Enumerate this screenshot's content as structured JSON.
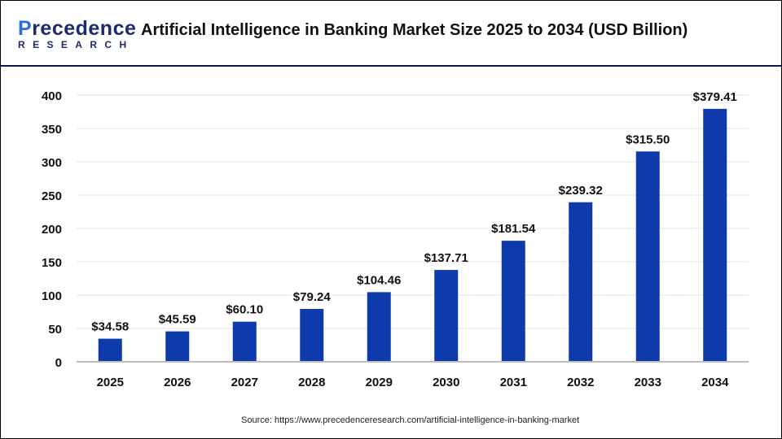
{
  "header": {
    "logo_line1": "Precedence",
    "logo_line2": "RESEARCH",
    "title": "Artificial Intelligence in Banking Market Size 2025 to 2034 (USD Billion)"
  },
  "source": "Source: https://www.precedenceresearch.com/artificial-intelligence-in-banking-market",
  "chart_data": {
    "type": "bar",
    "title": "Artificial Intelligence in Banking Market Size 2025 to 2034 (USD Billion)",
    "categories": [
      "2025",
      "2026",
      "2027",
      "2028",
      "2029",
      "2030",
      "2031",
      "2032",
      "2033",
      "2034"
    ],
    "values": [
      34.58,
      45.59,
      60.1,
      79.24,
      104.46,
      137.71,
      181.54,
      239.32,
      315.5,
      379.41
    ],
    "data_labels": [
      "$34.58",
      "$45.59",
      "$60.10",
      "$79.24",
      "$104.46",
      "$137.71",
      "$181.54",
      "$239.32",
      "$315.50",
      "$379.41"
    ],
    "ylim": [
      0,
      400
    ],
    "yticks": [
      0,
      50,
      100,
      150,
      200,
      250,
      300,
      350,
      400
    ],
    "grid": true,
    "bar_color": "#0f3aab",
    "xlabel": "",
    "ylabel": ""
  }
}
